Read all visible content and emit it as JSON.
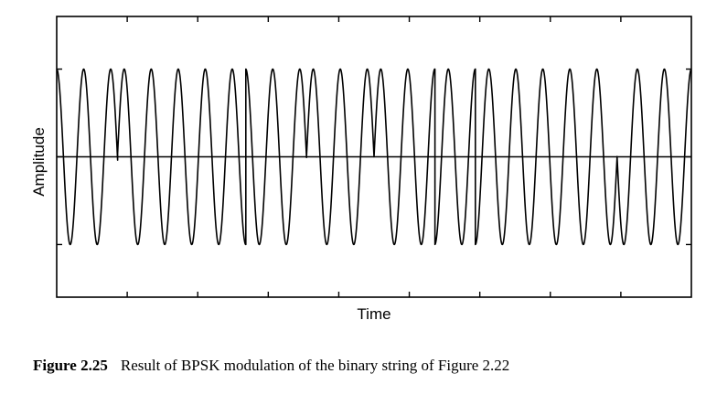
{
  "chart_data": {
    "type": "line",
    "title": "",
    "xlabel": "Time",
    "ylabel": "Amplitude",
    "xlim": [
      0,
      23.5
    ],
    "ylim": [
      -1.6,
      1.6
    ],
    "y_ticks": [
      -1,
      0,
      1
    ],
    "x_tick_count": 9,
    "grid": false,
    "legend": "none",
    "series": [
      {
        "carrier_cycles": 23.5,
        "amplitude": 1,
        "phase_flip_cycles": [
          2.25,
          7.0,
          9.25,
          11.75,
          14.0,
          15.5,
          20.75
        ],
        "zero_line": true
      }
    ]
  },
  "caption": {
    "number": "Figure 2.25",
    "text": "Result of BPSK modulation of the binary string of Figure 2.22"
  },
  "colors": {
    "line": "#000000",
    "background": "#ffffff"
  }
}
